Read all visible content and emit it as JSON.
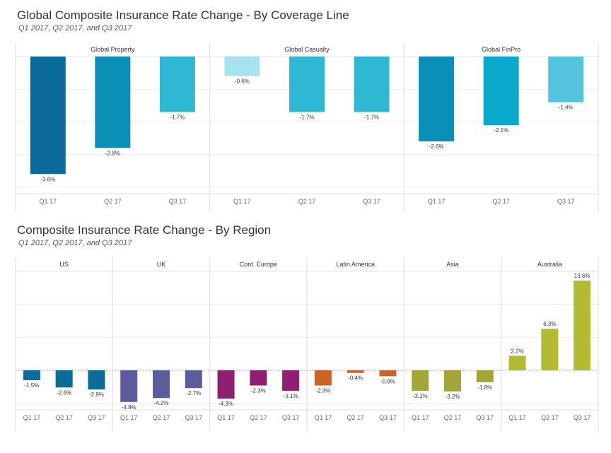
{
  "chart_data": [
    {
      "type": "bar",
      "title": "Global Composite Insurance Rate Change - By Coverage Line",
      "subtitle": "Q1 2017, Q2 2017, and Q3 2017",
      "categories": [
        "Q1 17",
        "Q2 17",
        "Q3 17"
      ],
      "ylim": [
        -4.2,
        0
      ],
      "grid": true,
      "panels": [
        {
          "name": "Global Property",
          "values": [
            -3.6,
            -2.8,
            -1.7
          ],
          "labels": [
            "-3.6%",
            "-2.8%",
            "-1.7%"
          ],
          "colors": [
            "#0b6b9b",
            "#0b8fb4",
            "#2fb8d4"
          ]
        },
        {
          "name": "Global Casualty",
          "values": [
            -0.6,
            -1.7,
            -1.7
          ],
          "labels": [
            "-0.6%",
            "-1.7%",
            "-1.7%"
          ],
          "colors": [
            "#a8e2ef",
            "#2fb8d4",
            "#2fb8d4"
          ]
        },
        {
          "name": "Global FinPro",
          "values": [
            -2.6,
            -2.1,
            -1.4
          ],
          "labels": [
            "-2.6%",
            "-2.1%",
            "-1.4%"
          ],
          "colors": [
            "#0a8fb8",
            "#08a9cc",
            "#52c4db"
          ]
        }
      ]
    },
    {
      "type": "bar",
      "title": "Composite Insurance Rate Change - By Region",
      "subtitle": "Q1 2017, Q2 2017, and Q3 2017",
      "categories": [
        "Q1 17",
        "Q2 17",
        "Q3 17"
      ],
      "ylim": [
        -6.0,
        15.0
      ],
      "grid": true,
      "panels": [
        {
          "name": "US",
          "values": [
            -1.5,
            -2.6,
            -2.9
          ],
          "labels": [
            "-1.5%",
            "-2.6%",
            "-2.9%"
          ],
          "colors": [
            "#0b6b9b",
            "#0b6b9b",
            "#0b6b9b"
          ]
        },
        {
          "name": "UK",
          "values": [
            -4.8,
            -4.2,
            -2.7
          ],
          "labels": [
            "-4.8%",
            "-4.2%",
            "-2.7%"
          ],
          "colors": [
            "#5e5a9e",
            "#5e5a9e",
            "#5e5a9e"
          ]
        },
        {
          "name": "Cont. Europe",
          "values": [
            -4.3,
            -2.3,
            -3.1
          ],
          "labels": [
            "-4.3%",
            "-2.3%",
            "-3.1%"
          ],
          "colors": [
            "#8e1f73",
            "#8e1f73",
            "#8e1f73"
          ]
        },
        {
          "name": "Latin America",
          "values": [
            -2.3,
            -0.4,
            -0.9
          ],
          "labels": [
            "-2.3%",
            "-0.4%",
            "-0.9%"
          ],
          "colors": [
            "#cc6428",
            "#cc6428",
            "#cc6428"
          ]
        },
        {
          "name": "Asia",
          "values": [
            -3.1,
            -3.2,
            -1.8
          ],
          "labels": [
            "-3.1%",
            "-3.2%",
            "-1.8%"
          ],
          "colors": [
            "#a3a537",
            "#a3a537",
            "#a3a537"
          ]
        },
        {
          "name": "Australia",
          "values": [
            2.2,
            6.3,
            13.6
          ],
          "labels": [
            "2.2%",
            "6.3%",
            "13.6%"
          ],
          "colors": [
            "#b4bb33",
            "#b4bb33",
            "#b4bb33"
          ]
        }
      ]
    }
  ]
}
